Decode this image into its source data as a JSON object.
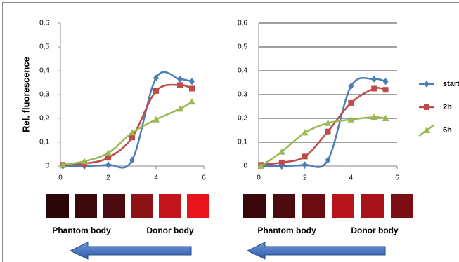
{
  "chart_data": [
    {
      "type": "line",
      "ylabel": "Rel. fluorescence",
      "x": [
        0.1,
        1,
        2,
        3,
        4,
        5,
        5.5
      ],
      "series": [
        {
          "name": "start",
          "color": "#4a7ebb",
          "marker": "diamond",
          "values": [
            0,
            0,
            0.005,
            0.025,
            0.37,
            0.365,
            0.355
          ]
        },
        {
          "name": "2h",
          "color": "#be4b48",
          "marker": "square",
          "values": [
            0.005,
            0.01,
            0.035,
            0.12,
            0.315,
            0.34,
            0.325
          ]
        },
        {
          "name": "6h",
          "color": "#98b954",
          "marker": "triangle",
          "values": [
            0.005,
            0.02,
            0.055,
            0.14,
            0.195,
            0.24,
            0.27
          ]
        }
      ],
      "xlim": [
        0,
        6
      ],
      "xticks": [
        0,
        2,
        4,
        6
      ],
      "ylim": [
        0,
        0.6
      ],
      "yticks": [
        0,
        {
          "value": 0.1,
          "label": "0,1"
        },
        {
          "value": 0.2,
          "label": "0,2"
        },
        {
          "value": 0.3,
          "label": "0,3"
        },
        {
          "value": 0.4,
          "label": "0,4"
        },
        {
          "value": 0.5,
          "label": "0,5"
        },
        {
          "value": 0.6,
          "label": "0,6"
        }
      ],
      "grid": false,
      "annotations": [
        "Phantom body",
        "Donor body"
      ]
    },
    {
      "type": "line",
      "x": [
        0.1,
        1,
        2,
        3,
        4,
        5,
        5.5
      ],
      "series": [
        {
          "name": "start",
          "color": "#4a7ebb",
          "marker": "diamond",
          "values": [
            0,
            0,
            0.005,
            0.025,
            0.335,
            0.365,
            0.355
          ]
        },
        {
          "name": "2h",
          "color": "#be4b48",
          "marker": "square",
          "values": [
            0.005,
            0.015,
            0.04,
            0.145,
            0.265,
            0.325,
            0.32
          ]
        },
        {
          "name": "6h",
          "color": "#98b954",
          "marker": "triangle",
          "values": [
            0,
            0.06,
            0.14,
            0.18,
            0.195,
            0.205,
            0.2
          ]
        }
      ],
      "xlim": [
        0,
        6
      ],
      "xticks": [
        0,
        2,
        4,
        6
      ],
      "ylim": [
        0,
        0.6
      ],
      "yticks": [
        0,
        {
          "value": 0.1,
          "label": "0,1"
        },
        {
          "value": 0.2,
          "label": "0,2"
        },
        {
          "value": 0.3,
          "label": "0,3"
        },
        {
          "value": 0.4,
          "label": "0,4"
        },
        {
          "value": 0.5,
          "label": "0,5"
        },
        {
          "value": 0.6,
          "label": "0,6"
        }
      ],
      "grid": true,
      "annotations": [
        "Phantom body",
        "Donor body"
      ]
    }
  ]
}
